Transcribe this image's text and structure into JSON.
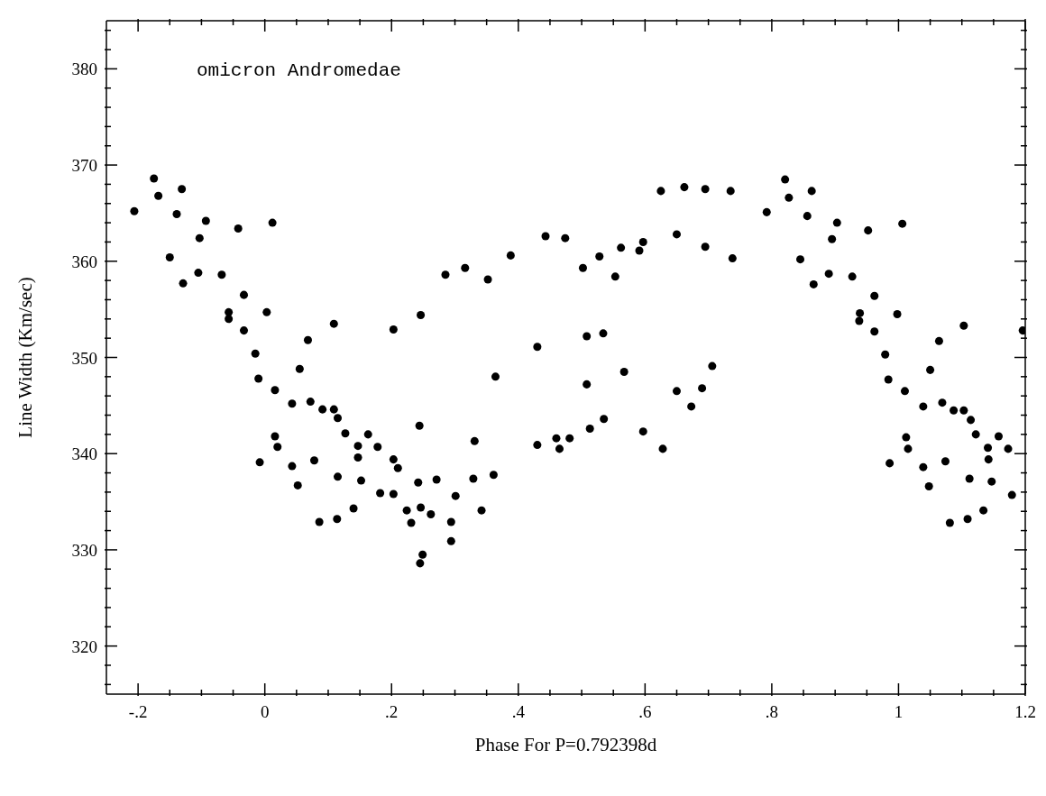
{
  "chart_data": {
    "type": "scatter",
    "xlabel": "Phase For P=0.792398d",
    "ylabel": "Line Width (Km/sec)",
    "annotations": [
      "omicron Andromedae"
    ],
    "xlim": [
      -0.25,
      1.2
    ],
    "ylim": [
      315,
      385
    ],
    "xticks": [
      {
        "value": -0.2,
        "label": "-.2"
      },
      {
        "value": -0.15,
        "label": null
      },
      {
        "value": -0.1,
        "label": null
      },
      {
        "value": -0.05,
        "label": null
      },
      {
        "value": 0,
        "label": "0"
      },
      {
        "value": 0.05,
        "label": null
      },
      {
        "value": 0.1,
        "label": null
      },
      {
        "value": 0.15,
        "label": null
      },
      {
        "value": 0.2,
        "label": ".2"
      },
      {
        "value": 0.25,
        "label": null
      },
      {
        "value": 0.3,
        "label": null
      },
      {
        "value": 0.35,
        "label": null
      },
      {
        "value": 0.4,
        "label": ".4"
      },
      {
        "value": 0.45,
        "label": null
      },
      {
        "value": 0.5,
        "label": null
      },
      {
        "value": 0.55,
        "label": null
      },
      {
        "value": 0.6,
        "label": ".6"
      },
      {
        "value": 0.65,
        "label": null
      },
      {
        "value": 0.7,
        "label": null
      },
      {
        "value": 0.75,
        "label": null
      },
      {
        "value": 0.8,
        "label": ".8"
      },
      {
        "value": 0.85,
        "label": null
      },
      {
        "value": 0.9,
        "label": null
      },
      {
        "value": 0.95,
        "label": null
      },
      {
        "value": 1,
        "label": "1"
      },
      {
        "value": 1.05,
        "label": null
      },
      {
        "value": 1.1,
        "label": null
      },
      {
        "value": 1.15,
        "label": null
      },
      {
        "value": 1.2,
        "label": "1.2"
      }
    ],
    "yticks": [
      {
        "value": 316,
        "label": null
      },
      {
        "value": 318,
        "label": null
      },
      320,
      {
        "value": 322,
        "label": null
      },
      {
        "value": 324,
        "label": null
      },
      {
        "value": 326,
        "label": null
      },
      {
        "value": 328,
        "label": null
      },
      330,
      {
        "value": 332,
        "label": null
      },
      {
        "value": 334,
        "label": null
      },
      {
        "value": 336,
        "label": null
      },
      {
        "value": 338,
        "label": null
      },
      340,
      {
        "value": 342,
        "label": null
      },
      {
        "value": 344,
        "label": null
      },
      {
        "value": 346,
        "label": null
      },
      {
        "value": 348,
        "label": null
      },
      350,
      {
        "value": 352,
        "label": null
      },
      {
        "value": 354,
        "label": null
      },
      {
        "value": 356,
        "label": null
      },
      {
        "value": 358,
        "label": null
      },
      360,
      {
        "value": 362,
        "label": null
      },
      {
        "value": 364,
        "label": null
      },
      {
        "value": 366,
        "label": null
      },
      {
        "value": 368,
        "label": null
      },
      370,
      {
        "value": 372,
        "label": null
      },
      {
        "value": 374,
        "label": null
      },
      {
        "value": 376,
        "label": null
      },
      {
        "value": 378,
        "label": null
      },
      380,
      {
        "value": 382,
        "label": null
      },
      {
        "value": 384,
        "label": null
      }
    ],
    "grid": false,
    "marker": "circle",
    "series": [
      {
        "color": "#000000",
        "x": [
          -0.206,
          -0.175,
          -0.168,
          -0.15,
          -0.139,
          -0.131,
          -0.129,
          -0.103,
          -0.105,
          -0.093,
          -0.068,
          -0.057,
          -0.057,
          -0.042,
          -0.033,
          -0.033,
          -0.015,
          -0.01,
          -0.008,
          0.003,
          0.012,
          0.016,
          0.016,
          0.02,
          0.043,
          0.043,
          0.052,
          0.055,
          0.068,
          0.072,
          0.078,
          0.086,
          0.091,
          0.109,
          0.109,
          0.115,
          0.115,
          0.114,
          0.127,
          0.14,
          0.147,
          0.147,
          0.152,
          0.163,
          0.178,
          0.182,
          0.203,
          0.203,
          0.203,
          0.21,
          0.224,
          0.231,
          0.242,
          0.244,
          0.246,
          0.246,
          0.249,
          0.245,
          0.262,
          0.271,
          0.285,
          0.294,
          0.294,
          0.301,
          0.316,
          0.331,
          0.329,
          0.342,
          0.352,
          0.361,
          0.364,
          0.388,
          0.43,
          0.43,
          0.443,
          0.46,
          0.465,
          0.474,
          0.481,
          0.502,
          0.508,
          0.508,
          0.513,
          0.528,
          0.534,
          0.535,
          0.553,
          0.562,
          0.567,
          0.591,
          0.597,
          0.597,
          0.625,
          0.628,
          0.65,
          0.65,
          0.662,
          0.673,
          0.69,
          0.695,
          0.695,
          0.706,
          0.735,
          0.738,
          0.792,
          0.821,
          0.827,
          0.845,
          0.856,
          0.863,
          0.866,
          0.895,
          0.89,
          0.903,
          0.927,
          0.938,
          0.939,
          0.952,
          0.962,
          0.962,
          0.979,
          0.984,
          0.986,
          0.998,
          1.006,
          1.01,
          1.012,
          1.015,
          1.039,
          1.039,
          1.048,
          1.05,
          1.064,
          1.069,
          1.074,
          1.081,
          1.087,
          1.103,
          1.103,
          1.109,
          1.112,
          1.114,
          1.122,
          1.134,
          1.141,
          1.142,
          1.147,
          1.158,
          1.173,
          1.179,
          1.196
        ],
        "values": [
          365.2,
          368.6,
          366.8,
          360.4,
          364.9,
          367.5,
          357.7,
          362.4,
          358.8,
          364.2,
          358.6,
          354.7,
          354.0,
          363.4,
          356.5,
          352.8,
          350.4,
          347.8,
          339.1,
          354.7,
          364.0,
          346.6,
          341.8,
          340.7,
          345.2,
          338.7,
          336.7,
          348.8,
          351.8,
          345.4,
          339.3,
          332.9,
          344.6,
          344.6,
          353.5,
          343.7,
          337.6,
          333.2,
          342.1,
          334.3,
          340.8,
          339.6,
          337.2,
          342.0,
          340.7,
          335.9,
          352.9,
          339.4,
          335.8,
          338.5,
          334.1,
          332.8,
          337.0,
          342.9,
          354.4,
          334.4,
          329.5,
          328.6,
          333.7,
          337.3,
          358.6,
          332.9,
          330.9,
          335.6,
          359.3,
          341.3,
          337.4,
          334.1,
          358.1,
          337.8,
          348.0,
          360.6,
          351.1,
          340.9,
          362.6,
          341.6,
          340.5,
          362.4,
          341.6,
          359.3,
          347.2,
          352.2,
          342.6,
          360.5,
          352.5,
          343.6,
          358.4,
          361.4,
          348.5,
          361.1,
          362.0,
          342.3,
          367.3,
          340.5,
          362.8,
          346.5,
          367.7,
          344.9,
          346.8,
          367.5,
          361.5,
          349.1,
          367.3,
          360.3,
          365.1,
          368.5,
          366.6,
          360.2,
          364.7,
          367.3,
          357.6,
          362.3,
          358.7,
          364.0,
          358.4,
          353.8,
          354.6,
          363.2,
          356.4,
          352.7,
          350.3,
          347.7,
          339.0,
          354.5,
          363.9,
          346.5,
          341.7,
          340.5,
          344.9,
          338.6,
          336.6,
          348.7,
          351.7,
          345.3,
          339.2,
          332.8,
          344.5,
          344.5,
          353.3,
          333.2,
          337.4,
          343.5,
          342.0,
          334.1,
          340.6,
          339.4,
          337.1,
          341.8,
          340.5,
          335.7,
          352.8
        ]
      }
    ]
  }
}
